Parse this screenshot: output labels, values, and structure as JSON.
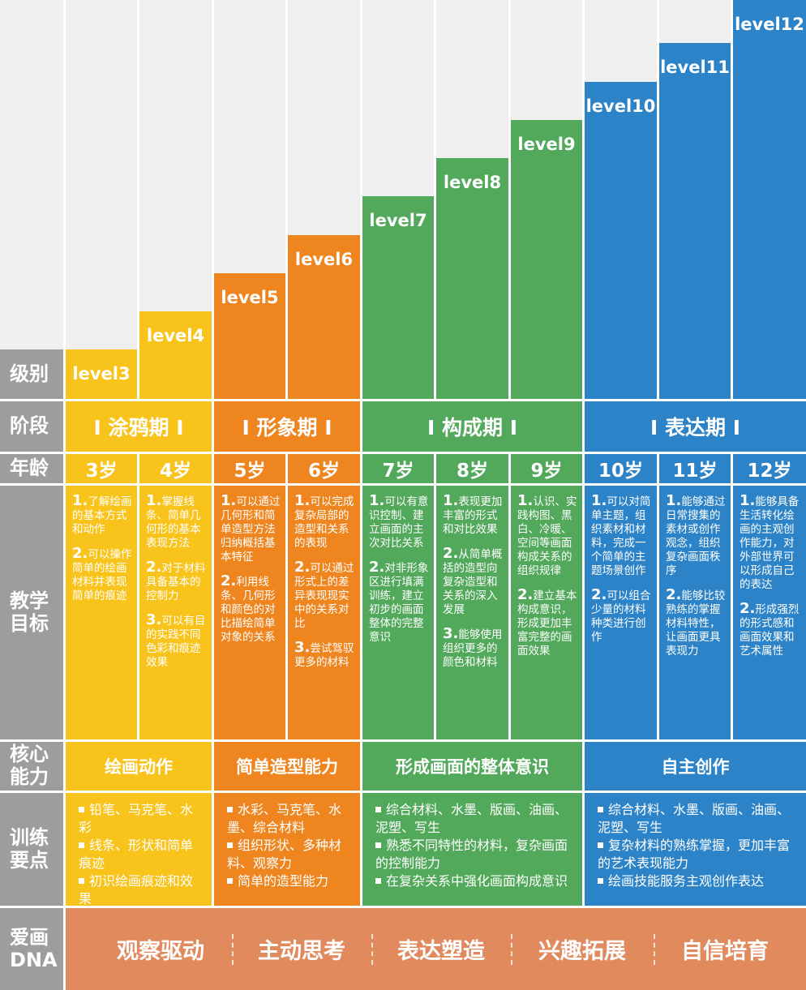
{
  "colors": {
    "yellow": "#f8c31a",
    "orange": "#ee851f",
    "green": "#52a85b",
    "blue": "#2c83c7",
    "gray_label": "#9d9d9d",
    "light_gray": "#efefef",
    "dna": "#e08a5e"
  },
  "row_labels": {
    "level": "级别",
    "stage": "阶段",
    "age": "年龄",
    "objective": "教学目标",
    "core": "核心能力",
    "training": "训练要点",
    "dna": "爱画DNA"
  },
  "levels": [
    "level3",
    "level4",
    "level5",
    "level6",
    "level7",
    "level8",
    "level9",
    "level10",
    "level11",
    "level12"
  ],
  "stages": [
    "I 涂鸦期 I",
    "I 形象期 I",
    "I 构成期 I",
    "I 表达期 I"
  ],
  "ages": [
    "3岁",
    "4岁",
    "5岁",
    "6岁",
    "7岁",
    "8岁",
    "9岁",
    "10岁",
    "11岁",
    "12岁"
  ],
  "objectives": [
    [
      "1.",
      "了解绘画的基本方式和动作",
      "2.",
      "可以操作简单的绘画材料并表现简单的痕迹"
    ],
    [
      "1.",
      "掌握线条、简单几何形的基本表现方法",
      "2.",
      "对于材料具备基本的控制力",
      "3.",
      "可以有目的实践不同色彩和痕迹效果"
    ],
    [
      "1.",
      "可以通过几何形和简单造型方法归纳概括基本特征",
      "2.",
      "利用线条、几何形和颜色的对比描绘简单对象的关系"
    ],
    [
      "1.",
      "可以完成复杂局部的造型和关系的表现",
      "2.",
      "可以通过形式上的差异表现现实中的关系对比",
      "3.",
      "尝试驾驭更多的材料"
    ],
    [
      "1.",
      "可以有意识控制、建立画面的主次对比关系",
      "2.",
      "对非形象区进行填满训练，建立初步的画面整体的完整意识"
    ],
    [
      "1.",
      "表现更加丰富的形式和对比效果",
      "2.",
      "从简单概括的造型向复杂造型和关系的深入发展",
      "3.",
      "能够使用组织更多的颜色和材料"
    ],
    [
      "1.",
      "认识、实践构图、黑白、冷暖、空间等画面构成关系的组织规律",
      "2.",
      "建立基本构成意识，形成更加丰富完整的画面效果"
    ],
    [
      "1.",
      "可以对简单主题，组织素材和材料，完成一个简单的主题场景创作",
      "2.",
      "可以组合少量的材料种类进行创作"
    ],
    [
      "1.",
      "能够通过日常搜集的素材或创作观念，组织复杂画面秩序",
      "2.",
      "能够比较熟练的掌握材料特性，让画面更具表现力"
    ],
    [
      "1.",
      "能够具备生活转化绘画的主观创作能力，对外部世界可以形成自己的表达",
      "2.",
      "形成强烈的形式感和画面效果和艺术属性"
    ]
  ],
  "core": [
    "绘画动作",
    "简单造型能力",
    "形成画面的整体意识",
    "自主创作"
  ],
  "training": [
    [
      "铅笔、马克笔、水彩",
      "线条、形状和简单痕迹",
      "初识绘画痕迹和效果"
    ],
    [
      "水彩、马克笔、水墨、综合材料",
      "组织形状、多种材料、观察力",
      "简单的造型能力"
    ],
    [
      "综合材料、水墨、版画、油画、泥塑、写生",
      "熟悉不同特性的材料，复杂画面的控制能力",
      "在复杂关系中强化画面构成意识"
    ],
    [
      "综合材料、水墨、版画、油画、泥塑、写生",
      "复杂材料的熟练掌握，更加丰富的艺术表现能力",
      "绘画技能服务主观创作表达"
    ]
  ],
  "dna": [
    "观察驱动",
    "主动思考",
    "表达塑造",
    "兴趣拓展",
    "自信培育"
  ]
}
